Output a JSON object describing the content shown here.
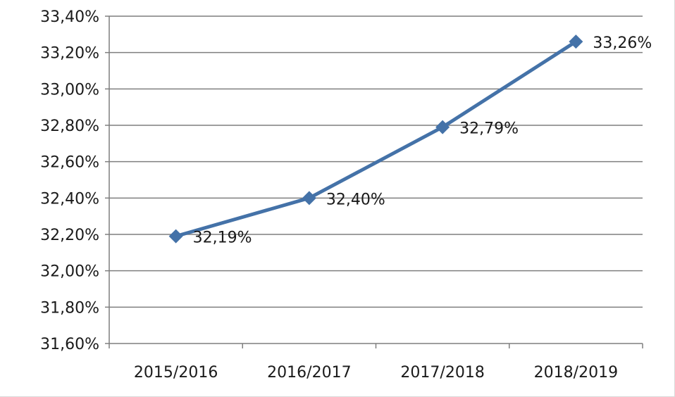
{
  "chart_data": {
    "type": "line",
    "categories": [
      "2015/2016",
      "2016/2017",
      "2017/2018",
      "2018/2019"
    ],
    "series": [
      {
        "values": [
          32.19,
          32.4,
          32.79,
          33.26
        ],
        "data_labels": [
          "32,19%",
          "32,40%",
          "32,79%",
          "33,26%"
        ],
        "color": "#4472a8"
      }
    ],
    "ylim": [
      31.6,
      33.4
    ],
    "yticks": [
      31.6,
      31.8,
      32.0,
      32.2,
      32.4,
      32.6,
      32.8,
      33.0,
      33.2,
      33.4
    ],
    "ytick_labels": [
      "31,60%",
      "31,80%",
      "32,00%",
      "32,20%",
      "32,40%",
      "32,60%",
      "32,80%",
      "33,00%",
      "33,20%",
      "33,40%"
    ],
    "grid": true,
    "legend": "none",
    "marker": "diamond",
    "gridline_color": "#7f7f7f",
    "axis_color": "#7f7f7f"
  }
}
